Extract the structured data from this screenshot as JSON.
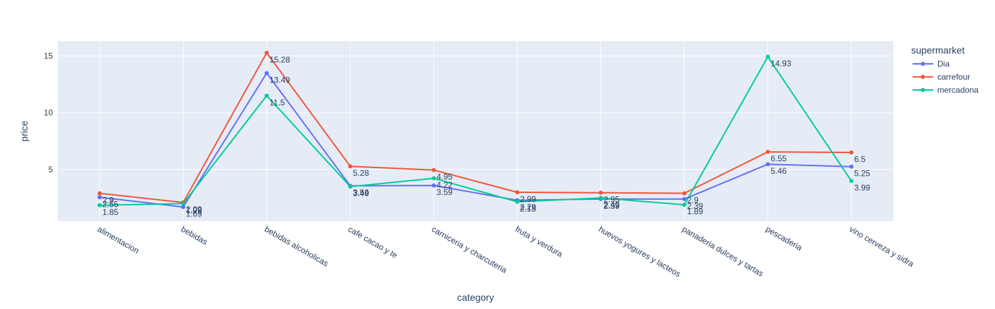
{
  "chart_data": {
    "type": "line",
    "title": "",
    "xlabel": "category",
    "ylabel": "price",
    "ylim": [
      0.45,
      16.3
    ],
    "yticks": [
      5,
      10,
      15
    ],
    "grid": true,
    "legend": {
      "title": "supermarket",
      "placement": "top-right"
    },
    "categories": [
      "alimentacion",
      "bebidas",
      "bebidas alcoholicas",
      "cafe cacao y te",
      "carniceria y charcuteria",
      "fruta y verdura",
      "huevos yogures y lacteos",
      "panaderia dulces y tartas",
      "pescaderia",
      "vino cerveza y sidra"
    ],
    "series": [
      {
        "name": "Dia",
        "color": "#636efa",
        "values": [
          2.55,
          1.69,
          13.49,
          3.56,
          3.59,
          2.29,
          2.39,
          2.39,
          5.46,
          5.25
        ],
        "labels": [
          "2.55",
          "1.69",
          "13.49",
          "3.56",
          "3.59",
          "2.29",
          "2.39",
          "2.39",
          "5.46",
          "5.25"
        ]
      },
      {
        "name": "carrefour",
        "color": "#ef553b",
        "values": [
          2.9,
          2.09,
          15.28,
          5.28,
          4.95,
          2.99,
          2.95,
          2.9,
          6.55,
          6.5
        ],
        "labels": [
          "2.9",
          "2.09",
          "15.28",
          "5.28",
          "4.95",
          "2.99",
          "2.95",
          "2.9",
          "6.55",
          "6.5"
        ]
      },
      {
        "name": "mercadona",
        "color": "#00cc96",
        "values": [
          1.85,
          1.99,
          11.5,
          3.49,
          4.22,
          2.15,
          2.49,
          1.89,
          14.93,
          3.99
        ],
        "labels": [
          "1.85",
          "1.99",
          "11.5",
          "3.49",
          "4.22",
          "2.15",
          "2.49",
          "1.89",
          "14.93",
          "3.99"
        ]
      }
    ]
  }
}
